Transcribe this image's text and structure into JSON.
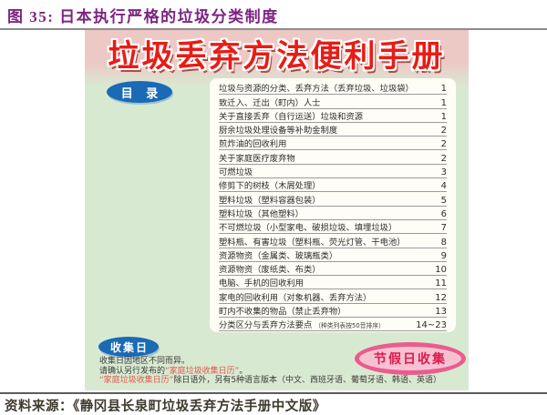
{
  "figure": {
    "title": "图 35: 日本执行严格的垃圾分类制度",
    "source": "资料来源：《静冈县长泉町垃圾丢弃方法手册中文版》"
  },
  "manual": {
    "title": "垃圾丢弃方法便利手册",
    "toc": {
      "heading": "目 录",
      "items": [
        {
          "label": "垃圾与资源的分类、丢弃方法（丢弃垃圾、垃圾袋）",
          "page": "1"
        },
        {
          "label": "致迁入、迁出（町内）人士",
          "page": "1"
        },
        {
          "label": "关于直接丢弃（自行运送）垃圾和资源",
          "page": "1"
        },
        {
          "label": "厨余垃圾处理设备等补助金制度",
          "page": "2"
        },
        {
          "label": "煎炸油的回收利用",
          "page": "2"
        },
        {
          "label": "关于家庭医疗废弃物",
          "page": "2"
        },
        {
          "label": "可燃垃圾",
          "page": "3"
        },
        {
          "label": "修剪下的树枝（木屑处理）",
          "page": "4"
        },
        {
          "label": "塑料垃圾（塑料容器包装）",
          "page": "5"
        },
        {
          "label": "塑料垃圾（其他塑料）",
          "page": "6"
        },
        {
          "label": "不可燃垃圾（小型家电、破损垃圾、填埋垃圾）",
          "page": "7"
        },
        {
          "label": "塑料瓶、有害垃圾（塑料瓶、荧光灯管、干电池）",
          "page": "8"
        },
        {
          "label": "资源物资（金属类、玻璃瓶类）",
          "page": "9"
        },
        {
          "label": "资源物资（废纸类、布类）",
          "page": "10"
        },
        {
          "label": "电脑、手机的回收利用",
          "page": "11"
        },
        {
          "label": "家电的回收利用（对象机器、丢弃方法）",
          "page": "12"
        },
        {
          "label": "町内不收集的物品（禁止丢弃物）",
          "page": "13"
        },
        {
          "label": "分类区分与丢弃方法要点",
          "note": "（种类列表按50音排序）",
          "page": "14~23"
        }
      ]
    },
    "collection": {
      "badge": "收集日",
      "holiday_badge": "节假日收集",
      "line1": "收集日因地区不同而异。",
      "line2_prefix": "请确认另行发布的",
      "line2_highlight": "“家庭垃圾收集日历”",
      "line2_suffix": "。",
      "line3_highlight": "“家庭垃圾收集日历”",
      "line3_suffix": "除日语外，另有5种语言版本（中文、西班牙语、葡萄牙语、韩语、英语）"
    }
  },
  "colors": {
    "figure_title": "#7d2483",
    "manual_title_red": "#e81c16",
    "banner_pink": "#edc9c6",
    "body_green": "#d8e9d1",
    "oval_blue": "#1a6ab5",
    "holiday_pink": "#ea5c8d",
    "highlight_red": "#e2574d"
  }
}
